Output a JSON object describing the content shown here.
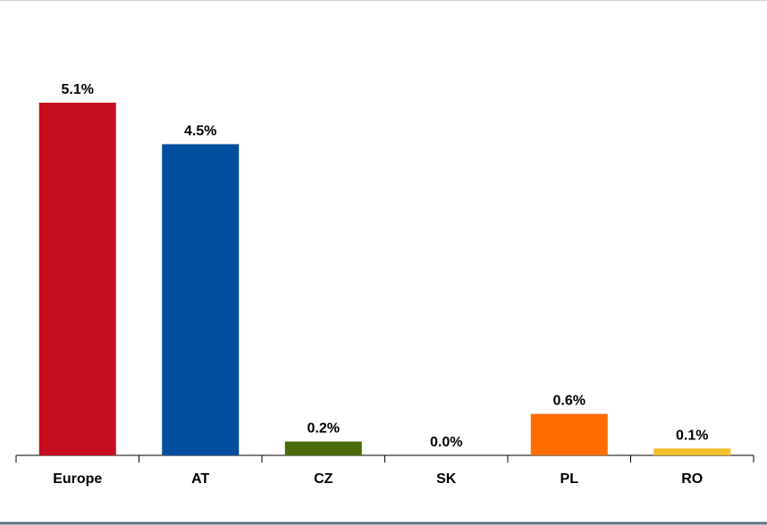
{
  "chart_data": {
    "type": "bar",
    "categories": [
      "Europe",
      "AT",
      "CZ",
      "SK",
      "PL",
      "RO"
    ],
    "values": [
      5.1,
      4.5,
      0.2,
      0.0,
      0.6,
      0.1
    ],
    "value_labels": [
      "5.1%",
      "4.5%",
      "0.2%",
      "0.0%",
      "0.6%",
      "0.1%"
    ],
    "colors": [
      "#c60c1f",
      "#004f9f",
      "#4a6b0a",
      "#7f7f7f",
      "#ff6d00",
      "#f2c12e"
    ]
  }
}
